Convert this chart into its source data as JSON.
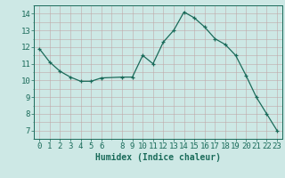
{
  "x": [
    0,
    1,
    2,
    3,
    4,
    5,
    6,
    8,
    9,
    10,
    11,
    12,
    13,
    14,
    15,
    16,
    17,
    18,
    19,
    20,
    21,
    22,
    23
  ],
  "y": [
    11.9,
    11.1,
    10.55,
    10.2,
    9.95,
    9.95,
    10.15,
    10.2,
    10.2,
    11.5,
    11.0,
    12.3,
    13.0,
    14.1,
    13.75,
    13.2,
    12.5,
    12.15,
    11.5,
    10.3,
    9.0,
    8.0,
    7.0
  ],
  "xlabel": "Humidex (Indice chaleur)",
  "xlim": [
    -0.5,
    23.5
  ],
  "ylim": [
    6.5,
    14.5
  ],
  "yticks": [
    7,
    8,
    9,
    10,
    11,
    12,
    13,
    14
  ],
  "xticks": [
    0,
    1,
    2,
    3,
    4,
    5,
    6,
    8,
    9,
    10,
    11,
    12,
    13,
    14,
    15,
    16,
    17,
    18,
    19,
    20,
    21,
    22,
    23
  ],
  "line_color": "#1a6b5a",
  "marker": "+",
  "marker_size": 3,
  "bg_color": "#cde8e5",
  "grid_color": "#c0a8a8",
  "tick_color": "#1a6b5a",
  "label_color": "#1a6b5a",
  "xlabel_fontsize": 7,
  "tick_fontsize": 6.5
}
